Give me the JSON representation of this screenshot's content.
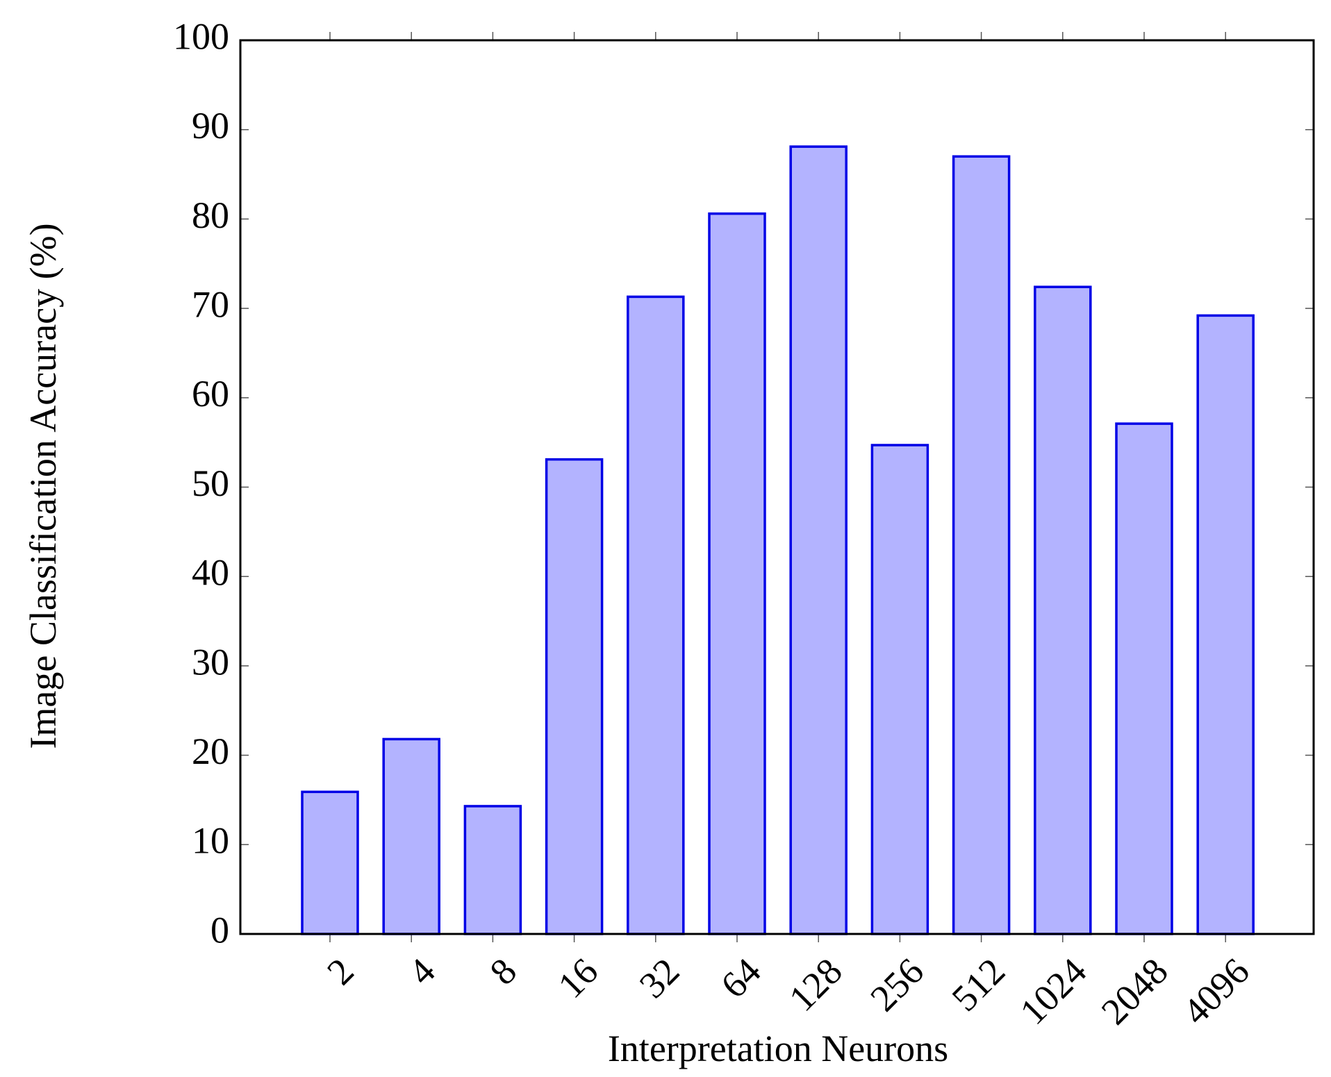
{
  "chart_data": {
    "type": "bar",
    "x_label": "Interpretation Neurons",
    "y_label": "Image Classification Accuracy (%)",
    "categories": [
      "2",
      "4",
      "8",
      "16",
      "32",
      "64",
      "128",
      "256",
      "512",
      "1024",
      "2048",
      "4096"
    ],
    "values": [
      15.9,
      21.8,
      14.3,
      53.1,
      71.3,
      80.6,
      88.1,
      54.7,
      87.0,
      72.4,
      57.1,
      69.2
    ],
    "color": "#b3b3ff",
    "edge_color": "#0000e6",
    "ylim": [
      0,
      100
    ],
    "yticks": [
      0,
      10,
      20,
      30,
      40,
      50,
      60,
      70,
      80,
      90,
      100
    ],
    "grid": false
  }
}
